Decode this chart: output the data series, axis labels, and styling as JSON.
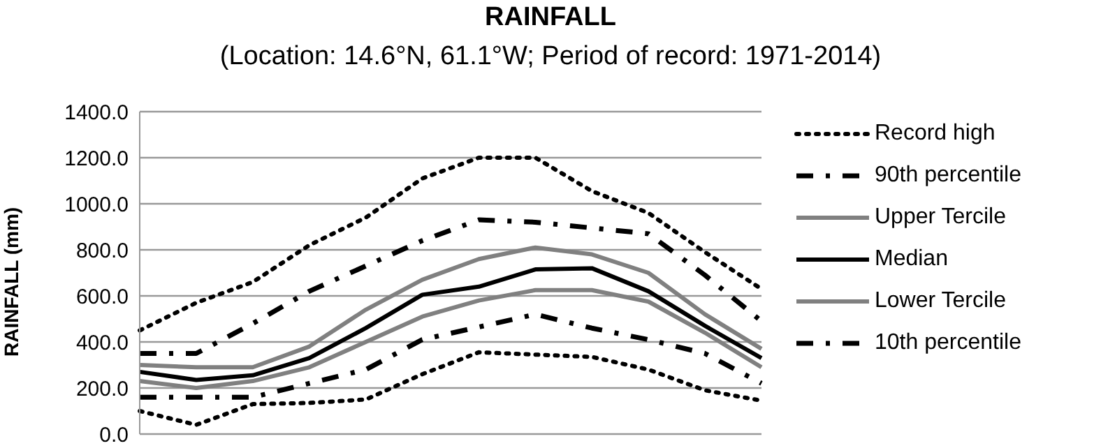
{
  "chart_data": {
    "type": "line",
    "title": "RAINFALL",
    "subtitle": "(Location: 14.6°N, 61.1°W; Period of record: 1971-2014)",
    "ylabel": "RAINFALL (mm)",
    "categories": [
      null,
      null,
      null,
      null,
      null,
      null,
      null,
      null,
      null,
      null,
      null,
      null
    ],
    "series": [
      {
        "name": "Record high",
        "color": "#000000",
        "line_style": "dotted",
        "values": [
          450,
          570,
          660,
          820,
          940,
          1110,
          1200,
          1200,
          1055,
          960,
          790,
          630
        ]
      },
      {
        "name": "90th percentile",
        "color": "#000000",
        "line_style": "dashed",
        "values": [
          350,
          350,
          480,
          620,
          730,
          840,
          930,
          920,
          895,
          870,
          690,
          490
        ]
      },
      {
        "name": "Upper Tercile",
        "color": "#808080",
        "line_style": "solid",
        "values": [
          300,
          290,
          290,
          380,
          540,
          670,
          760,
          810,
          780,
          700,
          520,
          370
        ]
      },
      {
        "name": "Median",
        "color": "#000000",
        "line_style": "solid",
        "values": [
          270,
          235,
          255,
          330,
          460,
          605,
          640,
          715,
          720,
          620,
          470,
          330
        ]
      },
      {
        "name": "Lower Tercile",
        "color": "#808080",
        "line_style": "solid",
        "values": [
          230,
          200,
          230,
          290,
          400,
          510,
          580,
          625,
          625,
          575,
          440,
          290
        ]
      },
      {
        "name": "10th percentile",
        "color": "#000000",
        "line_style": "dashed",
        "values": [
          160,
          160,
          160,
          220,
          280,
          410,
          465,
          520,
          460,
          410,
          350,
          220
        ]
      },
      {
        "color": "#000000",
        "line_style": "dotted",
        "values": [
          100,
          40,
          130,
          135,
          150,
          260,
          355,
          345,
          335,
          280,
          190,
          145
        ]
      }
    ],
    "ylim": [
      0,
      1400
    ],
    "yticks": [
      {
        "value": 0,
        "label": "0.0"
      },
      {
        "value": 200,
        "label": "200.0"
      },
      {
        "value": 400,
        "label": "400.0"
      },
      {
        "value": 600,
        "label": "600.0"
      },
      {
        "value": 800,
        "label": "800.0"
      },
      {
        "value": 1000,
        "label": "1000.0"
      },
      {
        "value": 1200,
        "label": "1200.0"
      },
      {
        "value": 1400,
        "label": "1400.0"
      }
    ],
    "grid": "y",
    "legend": "right",
    "marker": "none",
    "tick_labels": "y"
  }
}
